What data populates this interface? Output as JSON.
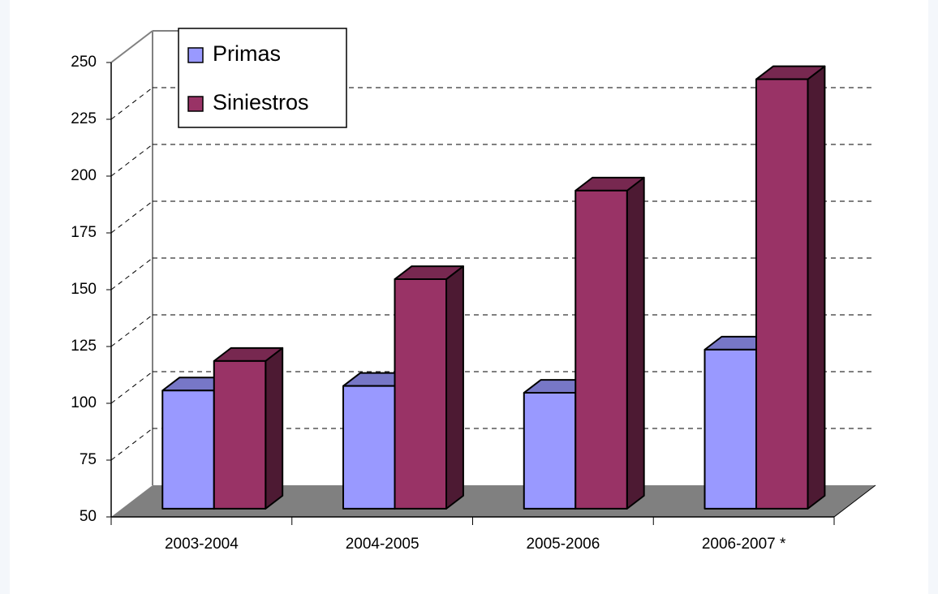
{
  "chart_data": {
    "type": "bar3d",
    "categories": [
      "2003-2004",
      "2004-2005",
      "2005-2006",
      "2006-2007 *"
    ],
    "series": [
      {
        "name": "Primas",
        "color": "#9999ff",
        "values": [
          102,
          104,
          101,
          120
        ]
      },
      {
        "name": "Siniestros",
        "color": "#993366",
        "values": [
          115,
          151,
          190,
          239
        ]
      }
    ],
    "ylim": [
      50,
      250
    ],
    "yticks": [
      50,
      75,
      100,
      125,
      150,
      175,
      200,
      225,
      250
    ],
    "grid": true,
    "legend": "top-left"
  }
}
